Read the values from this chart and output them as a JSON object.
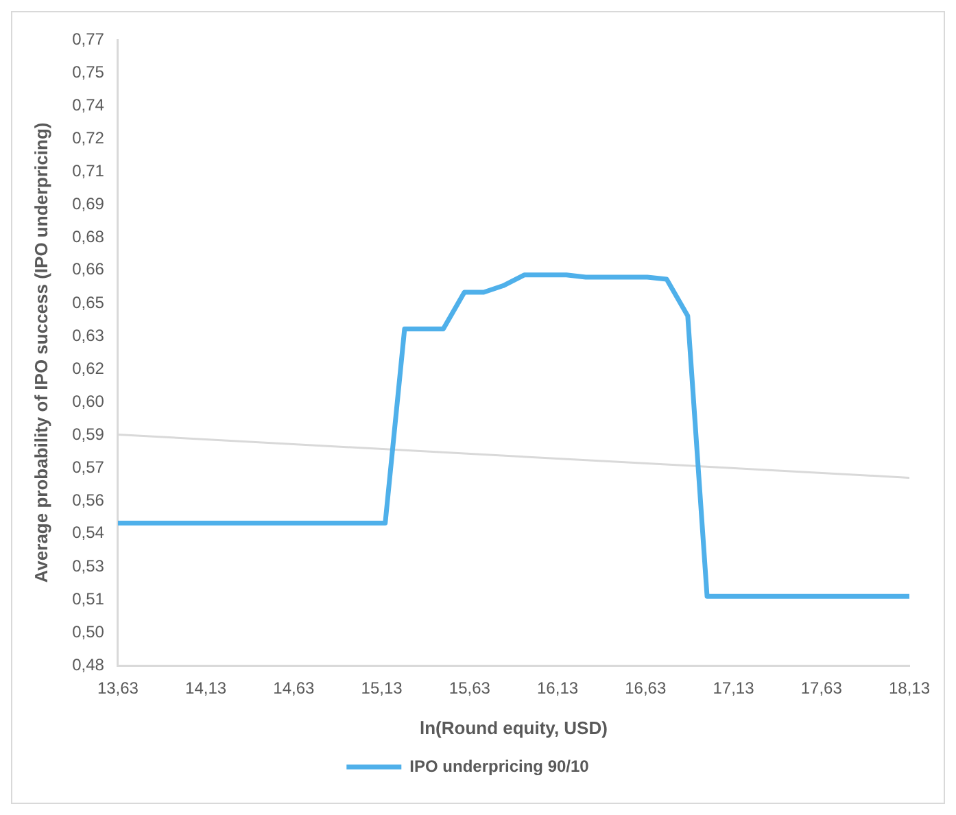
{
  "chart_data": {
    "type": "line",
    "xlabel": "ln(Round equity, USD)",
    "ylabel": "Average probability of IPO success (IPO underpricing)",
    "series": [
      {
        "name": "IPO underpricing 90/10",
        "color": "#4fb0ea",
        "x": [
          13.63,
          15.15,
          15.26,
          15.48,
          15.6,
          15.71,
          15.82,
          15.94,
          16.18,
          16.29,
          16.64,
          16.75,
          16.87,
          16.98,
          18.13
        ],
        "values": [
          0.546,
          0.546,
          0.636,
          0.636,
          0.653,
          0.653,
          0.656,
          0.661,
          0.661,
          0.66,
          0.66,
          0.659,
          0.642,
          0.512,
          0.512
        ]
      },
      {
        "type": "line",
        "color": "#d9d9d9",
        "x": [
          13.63,
          18.13
        ],
        "values": [
          0.587,
          0.567
        ]
      }
    ],
    "xlim": [
      13.63,
      18.13
    ],
    "xticks": [
      {
        "value": 13.63,
        "label": "13,63"
      },
      {
        "value": 14.13,
        "label": "14,13"
      },
      {
        "value": 14.63,
        "label": "14,63"
      },
      {
        "value": 15.13,
        "label": "15,13"
      },
      {
        "value": 15.63,
        "label": "15,63"
      },
      {
        "value": 16.13,
        "label": "16,13"
      },
      {
        "value": 16.63,
        "label": "16,63"
      },
      {
        "value": 17.13,
        "label": "17,13"
      },
      {
        "value": 17.63,
        "label": "17,63"
      },
      {
        "value": 18.13,
        "label": "18,13"
      }
    ],
    "ylim": [
      0.48,
      0.77
    ],
    "yticks": [
      {
        "value": 0.48,
        "label": "0,48"
      },
      {
        "value": 0.4953,
        "label": "0,50"
      },
      {
        "value": 0.5105,
        "label": "0,51"
      },
      {
        "value": 0.5258,
        "label": "0,53"
      },
      {
        "value": 0.5411,
        "label": "0,54"
      },
      {
        "value": 0.5563,
        "label": "0,56"
      },
      {
        "value": 0.5716,
        "label": "0,57"
      },
      {
        "value": 0.5868,
        "label": "0,59"
      },
      {
        "value": 0.6021,
        "label": "0,60"
      },
      {
        "value": 0.6174,
        "label": "0,62"
      },
      {
        "value": 0.6326,
        "label": "0,63"
      },
      {
        "value": 0.6479,
        "label": "0,65"
      },
      {
        "value": 0.6632,
        "label": "0,66"
      },
      {
        "value": 0.6784,
        "label": "0,68"
      },
      {
        "value": 0.6937,
        "label": "0,69"
      },
      {
        "value": 0.7089,
        "label": "0,71"
      },
      {
        "value": 0.7242,
        "label": "0,72"
      },
      {
        "value": 0.7395,
        "label": "0,74"
      },
      {
        "value": 0.7547,
        "label": "0,75"
      },
      {
        "value": 0.77,
        "label": "0,77"
      }
    ],
    "grid": false,
    "legend": "bottom"
  }
}
